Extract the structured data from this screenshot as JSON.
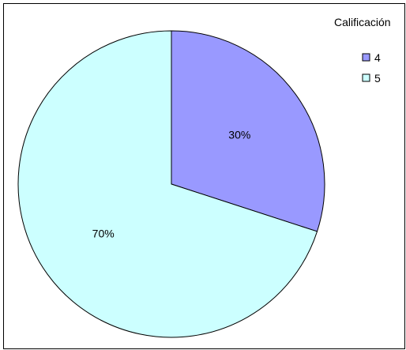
{
  "chart_data": {
    "type": "pie",
    "legend_title": "Calificación",
    "legend_position": "top-right",
    "categories": [
      "4",
      "5"
    ],
    "values": [
      30,
      70
    ],
    "labels": [
      "30%",
      "70%"
    ],
    "colors": [
      "#9999ff",
      "#ccffff"
    ]
  }
}
